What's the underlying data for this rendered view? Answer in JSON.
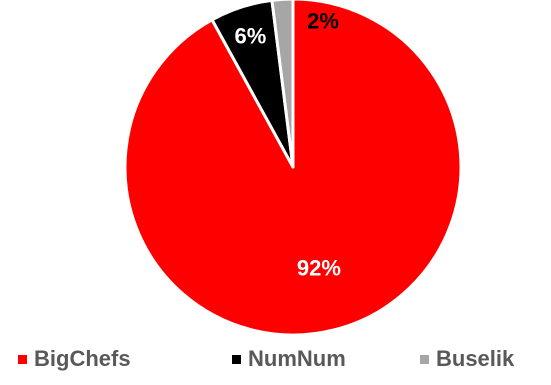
{
  "chart_data": {
    "type": "pie",
    "title": "",
    "categories": [
      "BigChefs",
      "NumNum",
      "Buselik"
    ],
    "values": [
      92,
      6,
      2
    ],
    "data_labels": [
      "92%",
      "6%",
      "2%"
    ],
    "colors": [
      "#ff0000",
      "#000000",
      "#a6a6a6"
    ],
    "label_colors": [
      "#ffffff",
      "#ffffff",
      "#000000"
    ],
    "legend_position": "bottom"
  },
  "legend": {
    "items": [
      {
        "label": "BigChefs",
        "color": "#ff0000"
      },
      {
        "label": "NumNum",
        "color": "#000000"
      },
      {
        "label": "Buselik",
        "color": "#a6a6a6"
      }
    ]
  }
}
